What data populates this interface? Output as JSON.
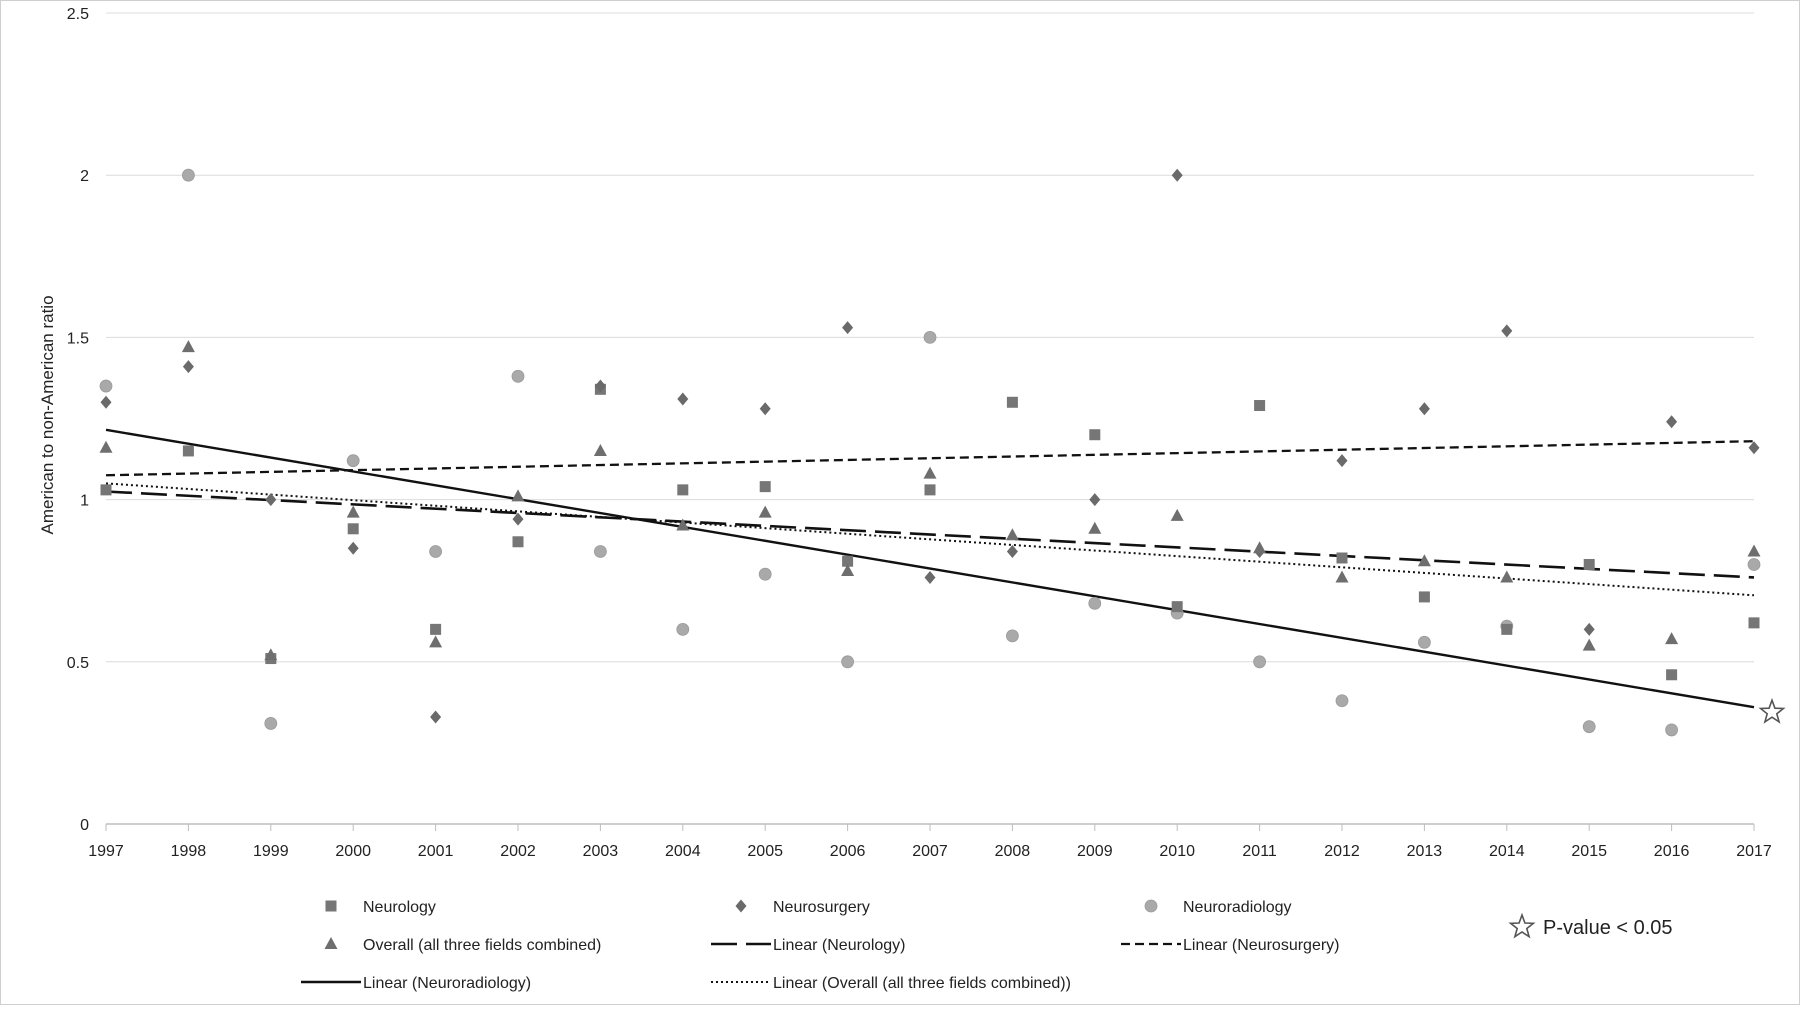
{
  "chart_data": {
    "type": "scatter",
    "ylabel": "American to non-American ratio",
    "ylim": [
      0,
      2.5
    ],
    "yticks": [
      "0",
      "0.5",
      "1",
      "1.5",
      "2",
      "2.5"
    ],
    "x": [
      "1997",
      "1998",
      "1999",
      "2000",
      "2001",
      "2002",
      "2003",
      "2004",
      "2005",
      "2006",
      "2007",
      "2008",
      "2009",
      "2010",
      "2011",
      "2012",
      "2013",
      "2014",
      "2015",
      "2016",
      "2017"
    ],
    "grid": true,
    "legend_position": "bottom",
    "colors": {
      "neurology": "#767676",
      "neurosurgery": "#6a6a6a",
      "neuroradiology": "#a9a9a9",
      "overall": "#6e6e6e",
      "line": "#111111"
    },
    "series": [
      {
        "name": "Neurology",
        "marker": "square",
        "values": [
          1.03,
          1.15,
          0.51,
          0.91,
          0.6,
          0.87,
          1.34,
          1.03,
          1.04,
          0.81,
          1.03,
          1.3,
          1.2,
          0.67,
          1.29,
          0.82,
          0.7,
          0.6,
          0.8,
          0.46,
          0.62
        ]
      },
      {
        "name": "Neurosurgery",
        "marker": "diamond",
        "values": [
          1.3,
          1.41,
          1.0,
          0.85,
          0.33,
          0.94,
          1.35,
          1.31,
          1.28,
          1.53,
          0.76,
          0.84,
          1.0,
          2.0,
          0.84,
          1.12,
          1.28,
          1.52,
          0.6,
          1.24,
          1.16
        ]
      },
      {
        "name": "Neuroradiology",
        "marker": "circle",
        "values": [
          1.35,
          2.0,
          0.31,
          1.12,
          0.84,
          1.38,
          0.84,
          0.6,
          0.77,
          0.5,
          1.5,
          0.58,
          0.68,
          0.65,
          0.5,
          0.38,
          0.56,
          0.61,
          0.3,
          0.29,
          0.8
        ]
      },
      {
        "name": "Overall (all three fields combined)",
        "marker": "triangle",
        "values": [
          1.16,
          1.47,
          0.52,
          0.96,
          0.56,
          1.01,
          1.15,
          0.92,
          0.96,
          0.78,
          1.08,
          0.89,
          0.91,
          0.95,
          0.85,
          0.76,
          0.81,
          0.76,
          0.55,
          0.57,
          0.84
        ]
      }
    ],
    "trendlines": [
      {
        "name": "Linear (Neurology)",
        "style": "long-dash",
        "start": 1.025,
        "end": 0.76
      },
      {
        "name": "Linear (Neurosurgery)",
        "style": "short-dash",
        "start": 1.075,
        "end": 1.18
      },
      {
        "name": "Linear (Neuroradiology)",
        "style": "solid",
        "start": 1.215,
        "end": 0.36
      },
      {
        "name": "Linear (Overall (all three fields combined))",
        "style": "dotted",
        "start": 1.05,
        "end": 0.705
      }
    ],
    "annotation": {
      "marker": "star",
      "series": "Linear (Neuroradiology)",
      "label": "P-value < 0.05"
    }
  }
}
